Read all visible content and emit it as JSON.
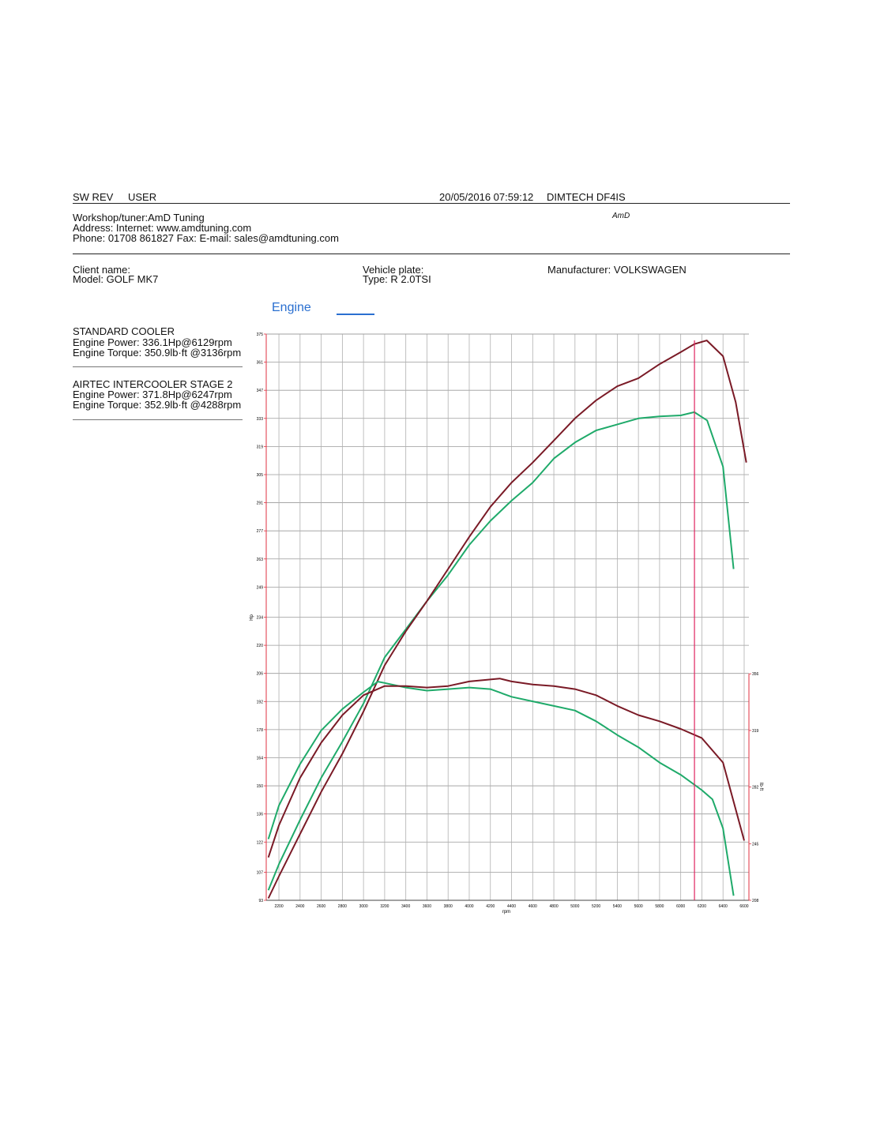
{
  "header": {
    "sw_rev": "SW REV",
    "user": "USER",
    "datetime": "20/05/2016 07:59:12",
    "device": "DIMTECH DF4IS"
  },
  "workshop": {
    "lines": [
      "Workshop/tuner:AmD Tuning",
      "Address:  Internet: www.amdtuning.com",
      "Phone: 01708 861827 Fax:  E-mail: sales@amdtuning.com"
    ],
    "logo": "AmD"
  },
  "vehicle": {
    "client": "Client name:",
    "model": "Model: GOLF MK7",
    "plate": "Vehicle plate:",
    "type": "Type: R 2.0TSI",
    "manufacturer": "Manufacturer: VOLKSWAGEN"
  },
  "results": [
    {
      "title": "STANDARD COOLER",
      "power": "Engine Power: 336.1Hp@6129rpm",
      "torque": "Engine Torque: 350.9lb·ft @3136rpm"
    },
    {
      "title": "AIRTEC INTERCOOLER STAGE 2",
      "power": "Engine Power: 371.8Hp@6247rpm",
      "torque": "Engine Torque: 352.9lb·ft @4288rpm"
    }
  ],
  "chart_data": {
    "type": "line",
    "title": "Engine",
    "title_color": "#2a6fd0",
    "legend_color": "#2a6fd0",
    "xlabel": "rpm",
    "ylabel": "Hp",
    "y2label": "lb·ft",
    "grid": true,
    "xlim": [
      2080,
      6645
    ],
    "xticks": [
      2200,
      2400,
      2600,
      2800,
      3000,
      3200,
      3400,
      3600,
      3800,
      4000,
      4200,
      4400,
      4600,
      4800,
      5000,
      5200,
      5400,
      5600,
      5800,
      6000,
      6200,
      6400,
      6600
    ],
    "ylim": [
      93,
      375
    ],
    "yticks": [
      93,
      107,
      122,
      136,
      150,
      164,
      178,
      192,
      206,
      220,
      234,
      249,
      263,
      277,
      291,
      305,
      319,
      333,
      347,
      361,
      375
    ],
    "y2lim": [
      208,
      578
    ],
    "y2ticks": [
      208,
      245,
      282,
      319,
      356
    ],
    "cursor": 6130,
    "cursor_color": "#e0245e",
    "axis_color": "#e03040",
    "series": [
      {
        "name": "STANDARD COOLER",
        "color": "#1faa6a",
        "x": [
          2100,
          2200,
          2400,
          2600,
          2800,
          3000,
          3200,
          3400,
          3600,
          3800,
          4000,
          4200,
          4400,
          4600,
          4800,
          5000,
          5200,
          5400,
          5600,
          5800,
          6000,
          6129,
          6250,
          6400,
          6500
        ],
        "values": [
          98,
          111,
          133,
          154,
          172,
          191,
          214,
          228,
          242,
          255,
          270,
          282,
          292,
          301,
          313,
          321,
          327,
          330,
          333,
          334,
          334.5,
          336.1,
          332,
          309,
          258
        ]
      },
      {
        "name": "AIRTEC INTERCOOLER STAGE 2",
        "color": "#7a1a26",
        "x": [
          2100,
          2200,
          2400,
          2600,
          2800,
          3000,
          3200,
          3400,
          3600,
          3800,
          4000,
          4200,
          4400,
          4600,
          4800,
          5000,
          5200,
          5400,
          5600,
          5800,
          6000,
          6129,
          6247,
          6400,
          6520,
          6620
        ],
        "values": [
          94,
          105,
          126,
          147,
          166,
          187,
          210,
          227,
          242,
          258,
          274,
          289,
          301,
          311,
          322,
          333,
          342,
          349,
          353,
          360,
          366,
          370,
          371.8,
          364,
          341,
          311
        ]
      },
      {
        "name": "STANDARD COOLER",
        "color": "#1faa6a",
        "axis": "y2",
        "x": [
          2100,
          2200,
          2400,
          2600,
          2800,
          3000,
          3136,
          3200,
          3400,
          3600,
          3800,
          4000,
          4200,
          4400,
          4600,
          4800,
          5000,
          5200,
          5400,
          5600,
          5800,
          6000,
          6200,
          6300,
          6400,
          6500
        ],
        "values": [
          248,
          270,
          297,
          319,
          333,
          344,
          350.9,
          350,
          347,
          345,
          346,
          347,
          346,
          341,
          338,
          335,
          332,
          325,
          316,
          308,
          298,
          290,
          280,
          274,
          255,
          211
        ]
      },
      {
        "name": "AIRTEC INTERCOOLER STAGE 2",
        "color": "#7a1a26",
        "axis": "y2",
        "x": [
          2100,
          2200,
          2400,
          2600,
          2800,
          3000,
          3200,
          3400,
          3600,
          3800,
          4000,
          4288,
          4400,
          4600,
          4800,
          5000,
          5200,
          5400,
          5600,
          5800,
          6000,
          6200,
          6400,
          6600
        ],
        "values": [
          236,
          257,
          288,
          311,
          329,
          342,
          348,
          348,
          347,
          348,
          351,
          352.9,
          351,
          349,
          348,
          346,
          342,
          335,
          329,
          325,
          320,
          314,
          298,
          247
        ]
      }
    ]
  }
}
